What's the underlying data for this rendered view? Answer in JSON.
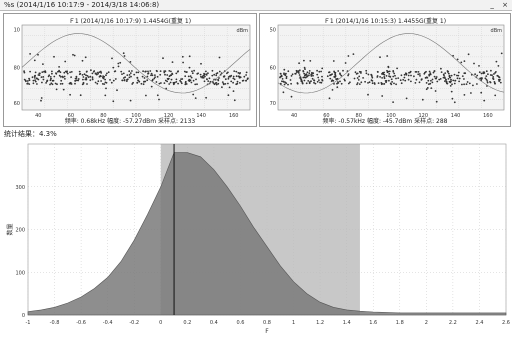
{
  "window": {
    "title": "%s (2014/1/16 10:17:9 - 2014/3/18 14:06:8)",
    "buttons": [
      "_",
      "×"
    ]
  },
  "left_panel": {
    "title": "Ｆ1 (2014/1/16 10:17:9) 1.4454G(重复 1)",
    "unit": "dBm",
    "y_ticks": [
      "10",
      "80",
      "60"
    ],
    "x_ticks": [
      "40",
      "60",
      "80",
      "100",
      "120",
      "140",
      "160"
    ],
    "footer": "频率: 0.68kHz  幅度: -57.27dBm  采样点: 2133"
  },
  "right_panel": {
    "title": "Ｆ1 (2014/1/16 10:15:3) 1.4455G(重复 1)",
    "unit": "dBm",
    "y_ticks": [
      "50",
      "60",
      "70"
    ],
    "x_ticks": [
      "40",
      "60",
      "80",
      "100",
      "120",
      "140",
      "160"
    ],
    "footer": "频率: -0.57kHz  幅度: -45.7dBm  采样点: 288"
  },
  "section_label": "统计结果：4.3%",
  "chart_data": {
    "type": "area",
    "ylabel": "数量",
    "xlabel": "F",
    "xlim": [
      -1.0,
      2.6
    ],
    "ylim": [
      0,
      400
    ],
    "x_ticks": [
      "-1",
      "-0.8",
      "-0.6",
      "-0.4",
      "-0.2",
      "0",
      "0.2",
      "0.4",
      "0.6",
      "0.8",
      "1",
      "1.2",
      "1.4",
      "1.6",
      "1.8",
      "2",
      "2.2",
      "2.4",
      "2.6"
    ],
    "y_ticks": [
      "0",
      "100",
      "200",
      "300"
    ],
    "series": [
      {
        "x": [
          -1.0,
          -0.9,
          -0.8,
          -0.7,
          -0.6,
          -0.5,
          -0.4,
          -0.3,
          -0.2,
          -0.1,
          0.0,
          0.05,
          0.1,
          0.2,
          0.3,
          0.4,
          0.5,
          0.6,
          0.7,
          0.8,
          0.9,
          1.0,
          1.1,
          1.2,
          1.3,
          1.4,
          1.5,
          1.6,
          1.8,
          2.0,
          2.2,
          2.4,
          2.6
        ],
        "y": [
          8,
          12,
          18,
          28,
          42,
          62,
          88,
          125,
          175,
          235,
          300,
          340,
          380,
          380,
          370,
          340,
          300,
          255,
          205,
          160,
          115,
          78,
          50,
          30,
          18,
          12,
          9,
          7,
          5,
          5,
          5,
          5,
          5
        ]
      }
    ],
    "band": [
      0.0,
      1.5
    ],
    "vline": 0.1,
    "grid": true
  }
}
